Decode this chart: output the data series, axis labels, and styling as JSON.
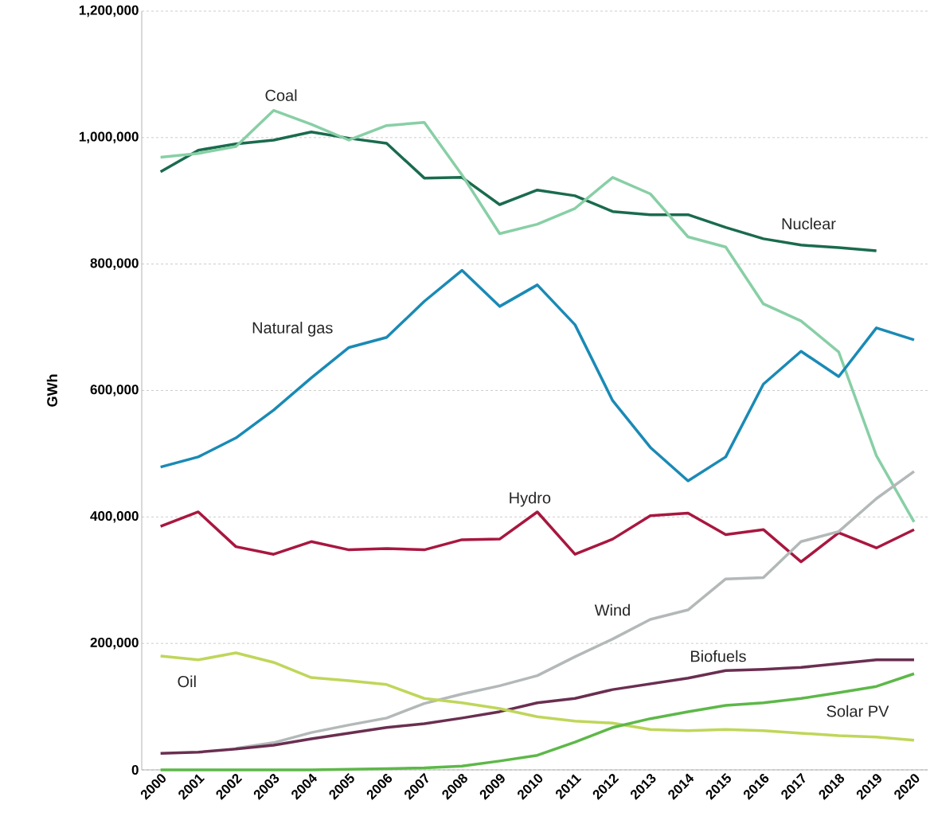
{
  "chart_data": {
    "type": "line",
    "ylabel": "GWh",
    "categories": [
      "2000",
      "2001",
      "2002",
      "2003",
      "2004",
      "2005",
      "2006",
      "2007",
      "2008",
      "2009",
      "2010",
      "2011",
      "2012",
      "2013",
      "2014",
      "2015",
      "2016",
      "2017",
      "2018",
      "2019",
      "2020"
    ],
    "ylim": [
      0,
      1200000
    ],
    "yticks": [
      {
        "value": 0,
        "label": "0"
      },
      {
        "value": 200000,
        "label": "200,000"
      },
      {
        "value": 400000,
        "label": "400,000"
      },
      {
        "value": 600000,
        "label": "600,000"
      },
      {
        "value": 800000,
        "label": "800,000"
      },
      {
        "value": 1000000,
        "label": "1,000,000"
      },
      {
        "value": 1200000,
        "label": "1,200,000"
      }
    ],
    "grid": "y",
    "legend": false,
    "marker": "none",
    "line_style": "solid",
    "series": [
      {
        "name": "Nuclear",
        "color": "#1a6b4e",
        "values": [
          946000,
          980000,
          990000,
          996000,
          1009000,
          999000,
          991000,
          936000,
          937000,
          894000,
          917000,
          908000,
          883000,
          878000,
          878000,
          858000,
          840000,
          830000,
          826000,
          821000,
          null
        ]
      },
      {
        "name": "Coal",
        "color": "#88cfa6",
        "values": [
          969000,
          975000,
          986000,
          1043000,
          1021000,
          996000,
          1019000,
          1024000,
          941000,
          848000,
          863000,
          888000,
          937000,
          911000,
          843000,
          827000,
          737000,
          710000,
          661000,
          497000,
          392000
        ]
      },
      {
        "name": "Natural gas",
        "color": "#1a8ab5",
        "values": [
          479000,
          495000,
          525000,
          569000,
          620000,
          668000,
          684000,
          741000,
          790000,
          733000,
          767000,
          704000,
          584000,
          510000,
          457000,
          495000,
          610000,
          662000,
          622000,
          699000,
          680000
        ]
      },
      {
        "name": "Hydro",
        "color": "#a8173f",
        "values": [
          385000,
          408000,
          353000,
          341000,
          361000,
          348000,
          350000,
          348000,
          364000,
          365000,
          408000,
          341000,
          365000,
          402000,
          406000,
          372000,
          380000,
          329000,
          375000,
          351000,
          380000
        ]
      },
      {
        "name": "Wind",
        "color": "#b3b8b8",
        "values": [
          null,
          null,
          34000,
          43000,
          59000,
          71000,
          82000,
          105000,
          120000,
          133000,
          149000,
          179000,
          207000,
          238000,
          253000,
          302000,
          304000,
          361000,
          377000,
          429000,
          472000
        ]
      },
      {
        "name": "Biofuels",
        "color": "#6a2e50",
        "values": [
          26000,
          28000,
          33000,
          39000,
          49000,
          58000,
          67000,
          73000,
          82000,
          92000,
          106000,
          113000,
          127000,
          136000,
          145000,
          157000,
          159000,
          162000,
          168000,
          174000,
          174000
        ]
      },
      {
        "name": "Oil",
        "color": "#bfd65a",
        "values": [
          180000,
          174000,
          185000,
          170000,
          146000,
          141000,
          135000,
          113000,
          106000,
          97000,
          84000,
          77000,
          74000,
          64000,
          62000,
          64000,
          62000,
          58000,
          54000,
          52000,
          47000
        ]
      },
      {
        "name": "Solar PV",
        "color": "#5db848",
        "values": [
          0,
          0,
          0,
          0,
          0,
          1000,
          2000,
          3000,
          6000,
          14000,
          23000,
          44000,
          67000,
          81000,
          92000,
          102000,
          106000,
          113000,
          122000,
          132000,
          152000
        ]
      }
    ]
  }
}
